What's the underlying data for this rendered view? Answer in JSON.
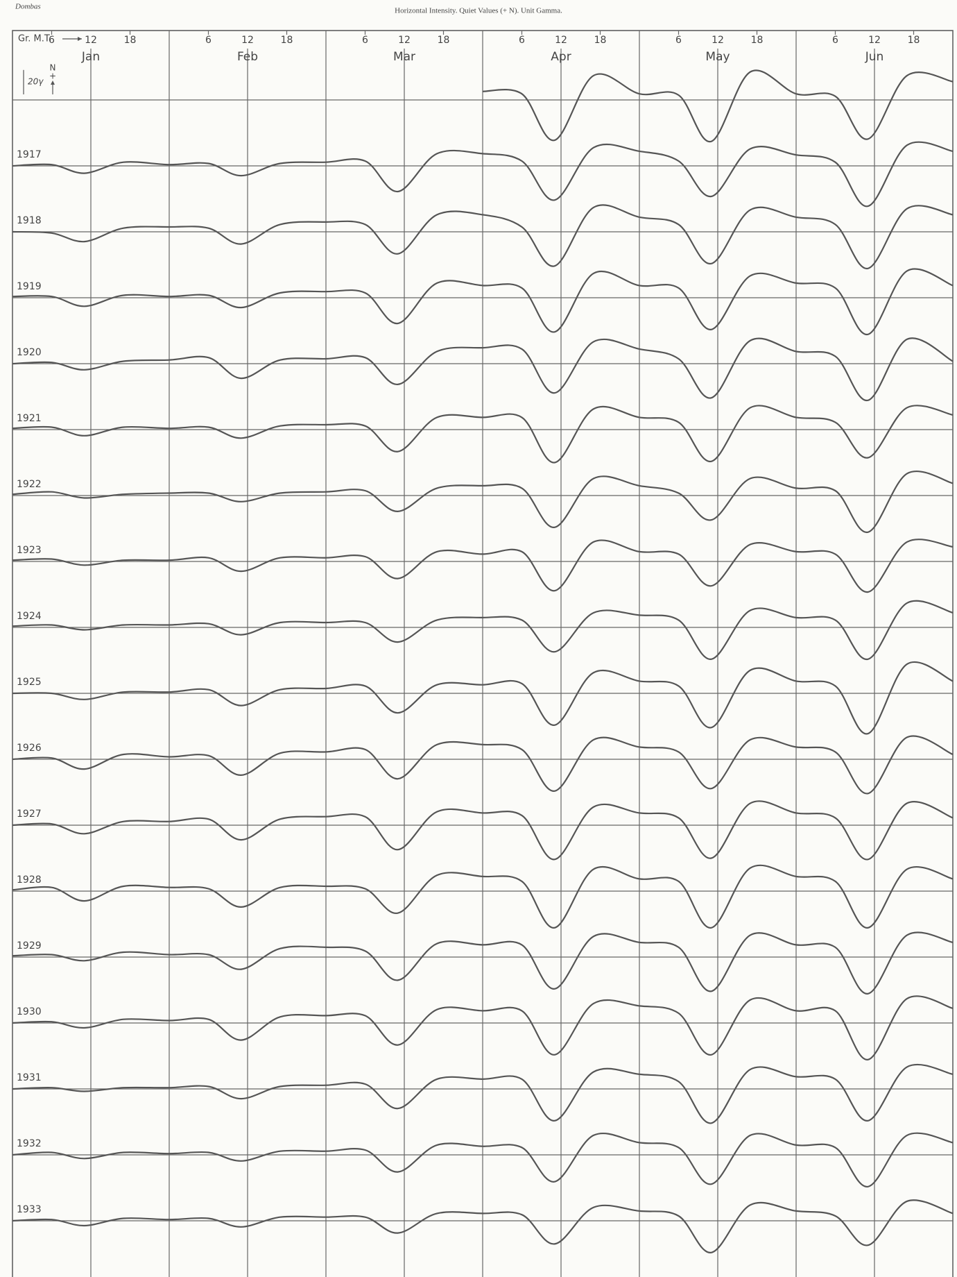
{
  "header": {
    "station": "Dombas",
    "title": "Horizontal Intensity.  Quiet Values (+ N).  Unit Gamma."
  },
  "chart_data": {
    "type": "line",
    "x_label": "Gr. M.T.",
    "north_label": "N",
    "plus_label": "+",
    "scale": {
      "value": 20,
      "label": "20γ"
    },
    "xlim": [
      0,
      144
    ],
    "xticks": [
      {
        "value": 6,
        "label": "6"
      },
      {
        "value": 12,
        "label": "12"
      },
      {
        "value": 18,
        "label": "18"
      },
      {
        "value": 30,
        "label": "6"
      },
      {
        "value": 36,
        "label": "12"
      },
      {
        "value": 42,
        "label": "18"
      },
      {
        "value": 54,
        "label": "6"
      },
      {
        "value": 60,
        "label": "12"
      },
      {
        "value": 66,
        "label": "18"
      },
      {
        "value": 78,
        "label": "6"
      },
      {
        "value": 84,
        "label": "12"
      },
      {
        "value": 90,
        "label": "18"
      },
      {
        "value": 102,
        "label": "6"
      },
      {
        "value": 108,
        "label": "12"
      },
      {
        "value": 114,
        "label": "18"
      },
      {
        "value": 126,
        "label": "6"
      },
      {
        "value": 132,
        "label": "12"
      },
      {
        "value": 138,
        "label": "18"
      }
    ],
    "months": [
      {
        "value": 12,
        "label": "Jan"
      },
      {
        "value": 36,
        "label": "Feb"
      },
      {
        "value": 60,
        "label": "Mar"
      },
      {
        "value": 84,
        "label": "Apr"
      },
      {
        "value": 108,
        "label": "May"
      },
      {
        "value": 132,
        "label": "Jun"
      }
    ],
    "color": "#555555",
    "x": [
      0,
      6,
      11,
      17,
      24,
      30,
      35,
      41,
      48,
      54,
      59,
      65,
      72,
      78,
      83,
      89,
      96,
      102,
      107,
      113,
      120,
      126,
      131,
      137,
      144
    ],
    "series": [
      {
        "values": [
          null,
          null,
          null,
          null,
          null,
          null,
          null,
          null,
          null,
          null,
          null,
          null,
          7,
          5,
          -33,
          20,
          5,
          4,
          -34,
          23,
          5,
          3,
          -32,
          20,
          15
        ]
      },
      {
        "name": "1917",
        "values": [
          0,
          1,
          -6,
          3,
          1,
          2,
          -8,
          2,
          3,
          4,
          -21,
          10,
          10,
          4,
          -28,
          15,
          12,
          4,
          -25,
          14,
          9,
          3,
          -33,
          17,
          12
        ]
      },
      {
        "name": "1918",
        "values": [
          0,
          -1,
          -8,
          3,
          4,
          3,
          -10,
          6,
          8,
          6,
          -18,
          14,
          14,
          4,
          -28,
          20,
          12,
          6,
          -26,
          18,
          12,
          6,
          -30,
          19,
          14
        ]
      },
      {
        "name": "1919",
        "values": [
          1,
          1,
          -7,
          2,
          1,
          2,
          -8,
          4,
          5,
          4,
          -21,
          12,
          10,
          8,
          -28,
          20,
          10,
          8,
          -26,
          18,
          12,
          8,
          -30,
          22,
          10
        ]
      },
      {
        "name": "1920",
        "values": [
          0,
          1,
          -5,
          2,
          3,
          5,
          -12,
          3,
          4,
          5,
          -17,
          10,
          13,
          12,
          -24,
          18,
          12,
          4,
          -28,
          19,
          10,
          6,
          -30,
          20,
          2
        ]
      },
      {
        "name": "1921",
        "values": [
          1,
          2,
          -5,
          2,
          1,
          2,
          -7,
          3,
          4,
          3,
          -18,
          10,
          10,
          10,
          -27,
          17,
          10,
          6,
          -26,
          18,
          10,
          6,
          -23,
          18,
          12
        ]
      },
      {
        "name": "1922",
        "values": [
          1,
          3,
          -2,
          1,
          2,
          2,
          -5,
          2,
          3,
          4,
          -13,
          6,
          8,
          6,
          -26,
          14,
          8,
          2,
          -20,
          14,
          6,
          4,
          -30,
          18,
          10
        ]
      },
      {
        "name": "1923",
        "values": [
          1,
          2,
          -3,
          1,
          1,
          3,
          -8,
          3,
          3,
          4,
          -14,
          8,
          6,
          8,
          -24,
          16,
          8,
          6,
          -20,
          14,
          8,
          6,
          -25,
          16,
          12
        ]
      },
      {
        "name": "1924",
        "values": [
          1,
          2,
          -2,
          2,
          2,
          3,
          -6,
          4,
          4,
          4,
          -12,
          6,
          8,
          6,
          -20,
          12,
          10,
          6,
          -26,
          14,
          8,
          6,
          -26,
          20,
          12
        ]
      },
      {
        "name": "1925",
        "values": [
          0,
          0,
          -5,
          1,
          1,
          3,
          -10,
          3,
          4,
          6,
          -16,
          7,
          7,
          8,
          -26,
          17,
          10,
          6,
          -28,
          19,
          10,
          6,
          -33,
          24,
          10
        ]
      },
      {
        "name": "1926",
        "values": [
          0,
          1,
          -8,
          4,
          2,
          3,
          -13,
          5,
          6,
          8,
          -16,
          12,
          12,
          8,
          -26,
          16,
          10,
          6,
          -24,
          16,
          10,
          6,
          -28,
          18,
          4
        ]
      },
      {
        "name": "1927",
        "values": [
          0,
          1,
          -7,
          3,
          3,
          5,
          -12,
          5,
          7,
          7,
          -20,
          11,
          10,
          8,
          -28,
          15,
          10,
          6,
          -27,
          18,
          10,
          6,
          -28,
          18,
          6
        ]
      },
      {
        "name": "1928",
        "values": [
          1,
          3,
          -8,
          4,
          3,
          2,
          -13,
          3,
          4,
          2,
          -18,
          13,
          12,
          8,
          -30,
          18,
          10,
          8,
          -30,
          19,
          12,
          8,
          -30,
          18,
          10
        ]
      },
      {
        "name": "1929",
        "values": [
          1,
          2,
          -3,
          4,
          2,
          2,
          -10,
          7,
          8,
          5,
          -19,
          11,
          10,
          10,
          -26,
          17,
          12,
          8,
          -28,
          18,
          10,
          8,
          -30,
          18,
          12
        ]
      },
      {
        "name": "1930",
        "values": [
          0,
          1,
          -4,
          3,
          2,
          3,
          -14,
          5,
          6,
          6,
          -18,
          11,
          10,
          10,
          -26,
          16,
          14,
          8,
          -26,
          19,
          10,
          10,
          -30,
          20,
          12
        ]
      },
      {
        "name": "1931",
        "values": [
          0,
          1,
          -2,
          1,
          1,
          2,
          -8,
          2,
          3,
          4,
          -16,
          8,
          8,
          8,
          -26,
          14,
          12,
          6,
          -28,
          16,
          10,
          8,
          -26,
          18,
          12
        ]
      },
      {
        "name": "1932",
        "values": [
          0,
          2,
          -3,
          2,
          1,
          2,
          -5,
          3,
          3,
          4,
          -14,
          8,
          7,
          6,
          -22,
          16,
          10,
          6,
          -24,
          16,
          8,
          6,
          -26,
          16,
          10
        ]
      },
      {
        "name": "1933",
        "values": [
          0,
          1,
          -4,
          2,
          1,
          2,
          -5,
          3,
          3,
          3,
          -10,
          6,
          6,
          5,
          -19,
          11,
          8,
          4,
          -26,
          13,
          8,
          4,
          -20,
          16,
          6
        ]
      }
    ]
  }
}
